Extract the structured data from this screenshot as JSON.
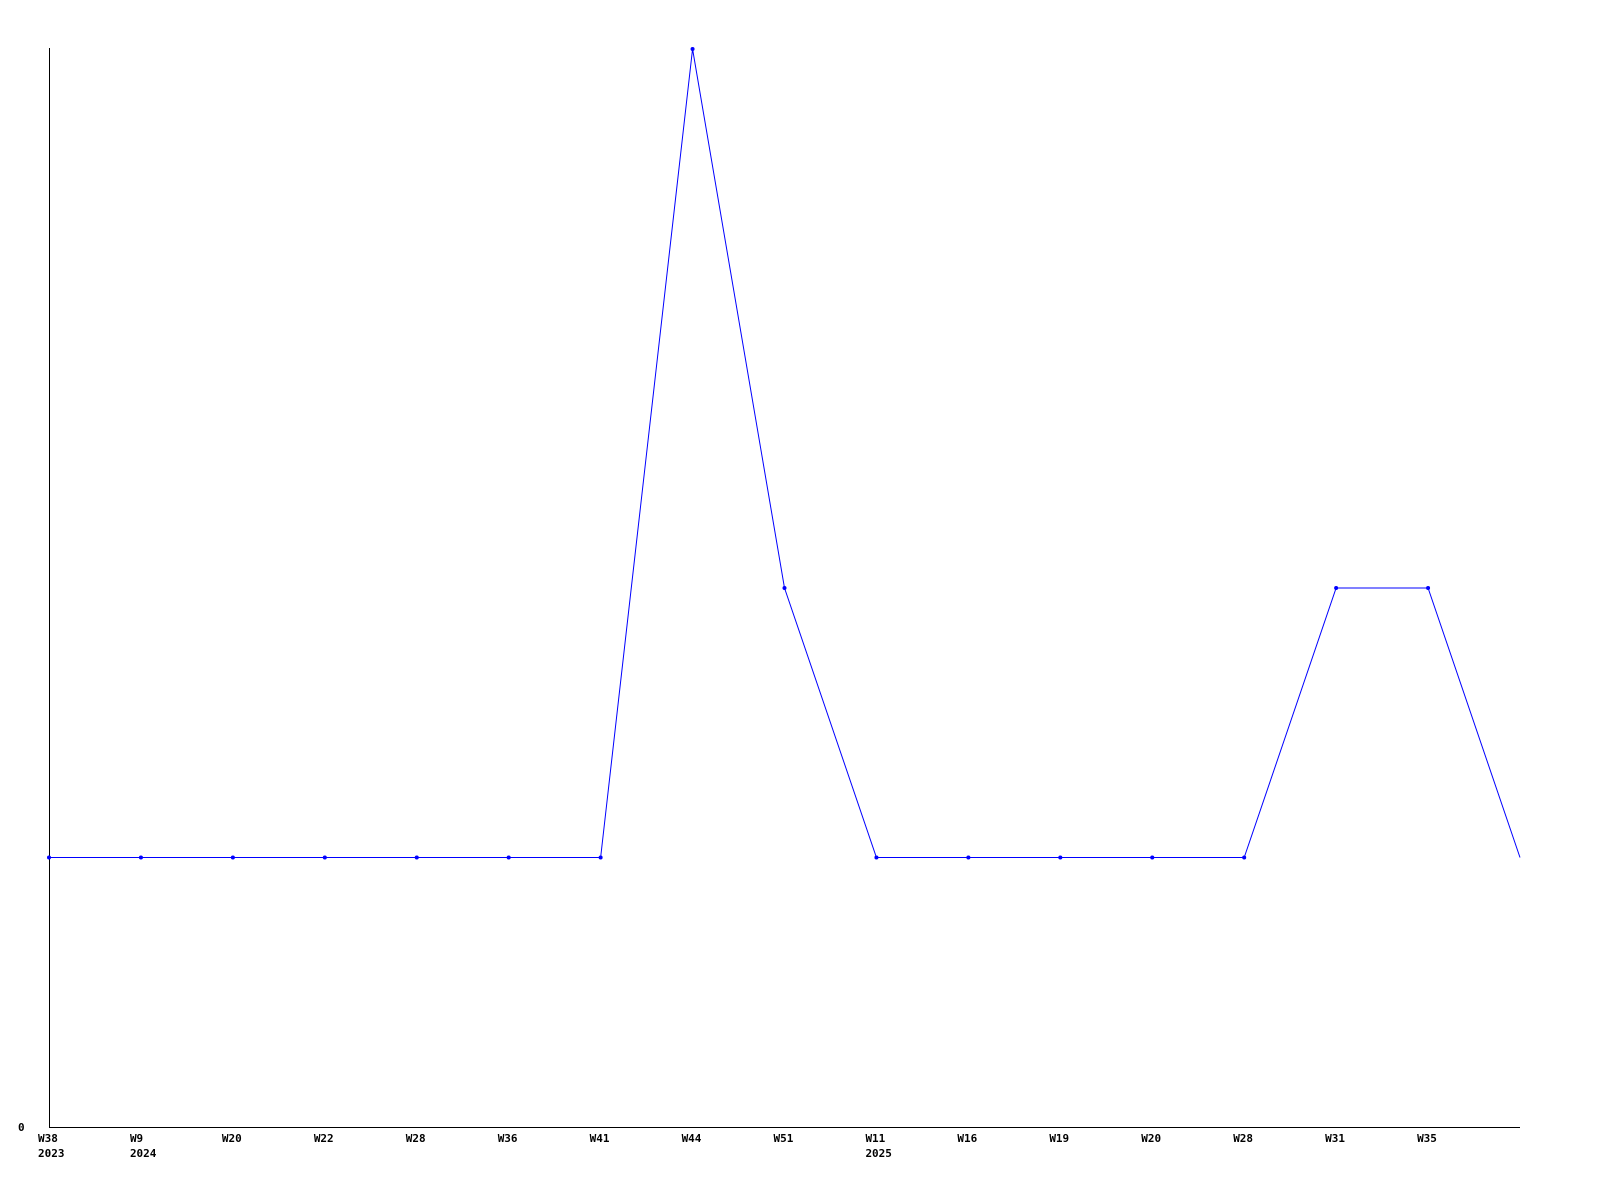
{
  "chart_data": {
    "type": "line",
    "title": "",
    "xlabel": "",
    "ylabel": "",
    "y_tick_labels": [
      "0"
    ],
    "ylim": [
      0,
      4
    ],
    "grid": false,
    "line_color": "#0000ff",
    "x_tick_labels": [
      {
        "week": "W38",
        "year": "2023"
      },
      {
        "week": "W9",
        "year": "2024"
      },
      {
        "week": "W20",
        "year": ""
      },
      {
        "week": "W22",
        "year": ""
      },
      {
        "week": "W28",
        "year": ""
      },
      {
        "week": "W36",
        "year": ""
      },
      {
        "week": "W41",
        "year": ""
      },
      {
        "week": "W44",
        "year": ""
      },
      {
        "week": "W51",
        "year": ""
      },
      {
        "week": "W11",
        "year": "2025"
      },
      {
        "week": "W16",
        "year": ""
      },
      {
        "week": "W19",
        "year": ""
      },
      {
        "week": "W20",
        "year": ""
      },
      {
        "week": "W28",
        "year": ""
      },
      {
        "week": "W31",
        "year": ""
      },
      {
        "week": "W35",
        "year": ""
      },
      {
        "week": "",
        "year": ""
      }
    ],
    "series": [
      {
        "values": [
          1,
          1,
          1,
          1,
          1,
          1,
          1,
          4,
          2,
          1,
          1,
          1,
          1,
          1,
          2,
          2,
          1
        ]
      }
    ]
  }
}
